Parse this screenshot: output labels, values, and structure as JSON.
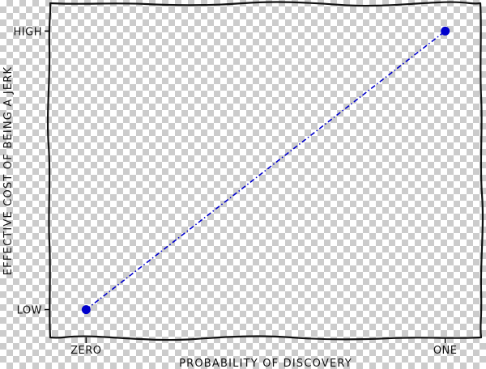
{
  "chart_data": {
    "type": "line",
    "title": "",
    "xlabel": "PROBABILITY OF DISCOVERY",
    "ylabel": "EFFECTIVE COST OF BEING A JERK",
    "x_ticks": [
      {
        "value": 0,
        "label": "ZERO"
      },
      {
        "value": 1,
        "label": "ONE"
      }
    ],
    "y_ticks": [
      {
        "value": 0,
        "label": "LOW"
      },
      {
        "value": 1,
        "label": "HIGH"
      }
    ],
    "xlim": [
      -0.1,
      1.1
    ],
    "ylim": [
      -0.1,
      1.1
    ],
    "grid": false,
    "series": [
      {
        "x": [
          0,
          1
        ],
        "y": [
          0,
          1
        ],
        "color": "#0000cc",
        "line_style": "dash-dot",
        "marker": "circle"
      }
    ]
  }
}
